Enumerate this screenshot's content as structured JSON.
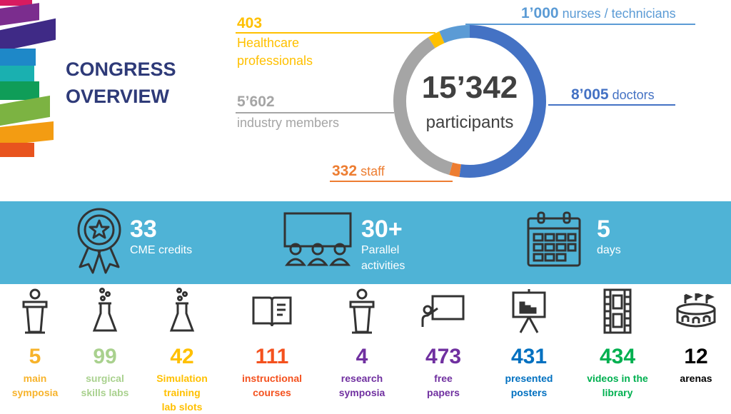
{
  "title": {
    "line1": "CONGRESS",
    "line2": "OVERVIEW"
  },
  "donut": {
    "total": "15’342",
    "total_label": "participants",
    "segments": [
      {
        "name": "doctors",
        "value": 8005,
        "color": "#4472c4"
      },
      {
        "name": "staff",
        "value": 332,
        "color": "#ed7d31"
      },
      {
        "name": "industry members",
        "value": 5602,
        "color": "#a5a5a5"
      },
      {
        "name": "Healthcare professionals",
        "value": 403,
        "color": "#ffc000"
      },
      {
        "name": "nurses / technicians",
        "value": 1000,
        "color": "#5b9bd5"
      }
    ]
  },
  "labels": {
    "doctors": {
      "num": "8’005",
      "text": "doctors",
      "color": "#4472c4"
    },
    "nurses": {
      "num": "1’000",
      "text": "nurses / technicians",
      "color": "#5b9bd5"
    },
    "healthcare": {
      "num": "403",
      "line1": "Healthcare",
      "line2": "professionals",
      "color": "#ffc000"
    },
    "industry": {
      "num": "5’602",
      "text": "industry members",
      "color": "#a5a5a5"
    },
    "staff": {
      "num": "332",
      "text": "staff",
      "color": "#ed7d31"
    }
  },
  "band": [
    {
      "value": "33",
      "line1": "CME credits",
      "line2": "",
      "icon": "award-ribbon-icon"
    },
    {
      "value": "30+",
      "line1": "Parallel",
      "line2": "activities",
      "icon": "audience-screen-icon"
    },
    {
      "value": "5",
      "line1": "days",
      "line2": "",
      "icon": "calendar-icon"
    }
  ],
  "stats": [
    {
      "value": "5",
      "line1": "main",
      "line2": "symposia",
      "line3": "",
      "color": "#f7b32b",
      "icon": "podium-icon"
    },
    {
      "value": "99",
      "line1": "surgical",
      "line2": "skills labs",
      "line3": "",
      "color": "#a9d18e",
      "icon": "flask-icon"
    },
    {
      "value": "42",
      "line1": "Simulation",
      "line2": "training",
      "line3": "lab slots",
      "color": "#ffc000",
      "icon": "flask-icon"
    },
    {
      "value": "111",
      "line1": "instructional",
      "line2": "courses",
      "line3": "",
      "color": "#f4511e",
      "icon": "book-icon"
    },
    {
      "value": "4",
      "line1": "research",
      "line2": "symposia",
      "line3": "",
      "color": "#7030a0",
      "icon": "podium-icon"
    },
    {
      "value": "473",
      "line1": "free",
      "line2": "papers",
      "line3": "",
      "color": "#7030a0",
      "icon": "presenter-board-icon"
    },
    {
      "value": "431",
      "line1": "presented",
      "line2": "posters",
      "line3": "",
      "color": "#0070c0",
      "icon": "easel-chart-icon"
    },
    {
      "value": "434",
      "line1": "videos in the",
      "line2": "library",
      "line3": "",
      "color": "#00b050",
      "icon": "film-strip-icon"
    },
    {
      "value": "12",
      "line1": "arenas",
      "line2": "",
      "line3": "",
      "color": "#000000",
      "icon": "stadium-icon"
    }
  ]
}
